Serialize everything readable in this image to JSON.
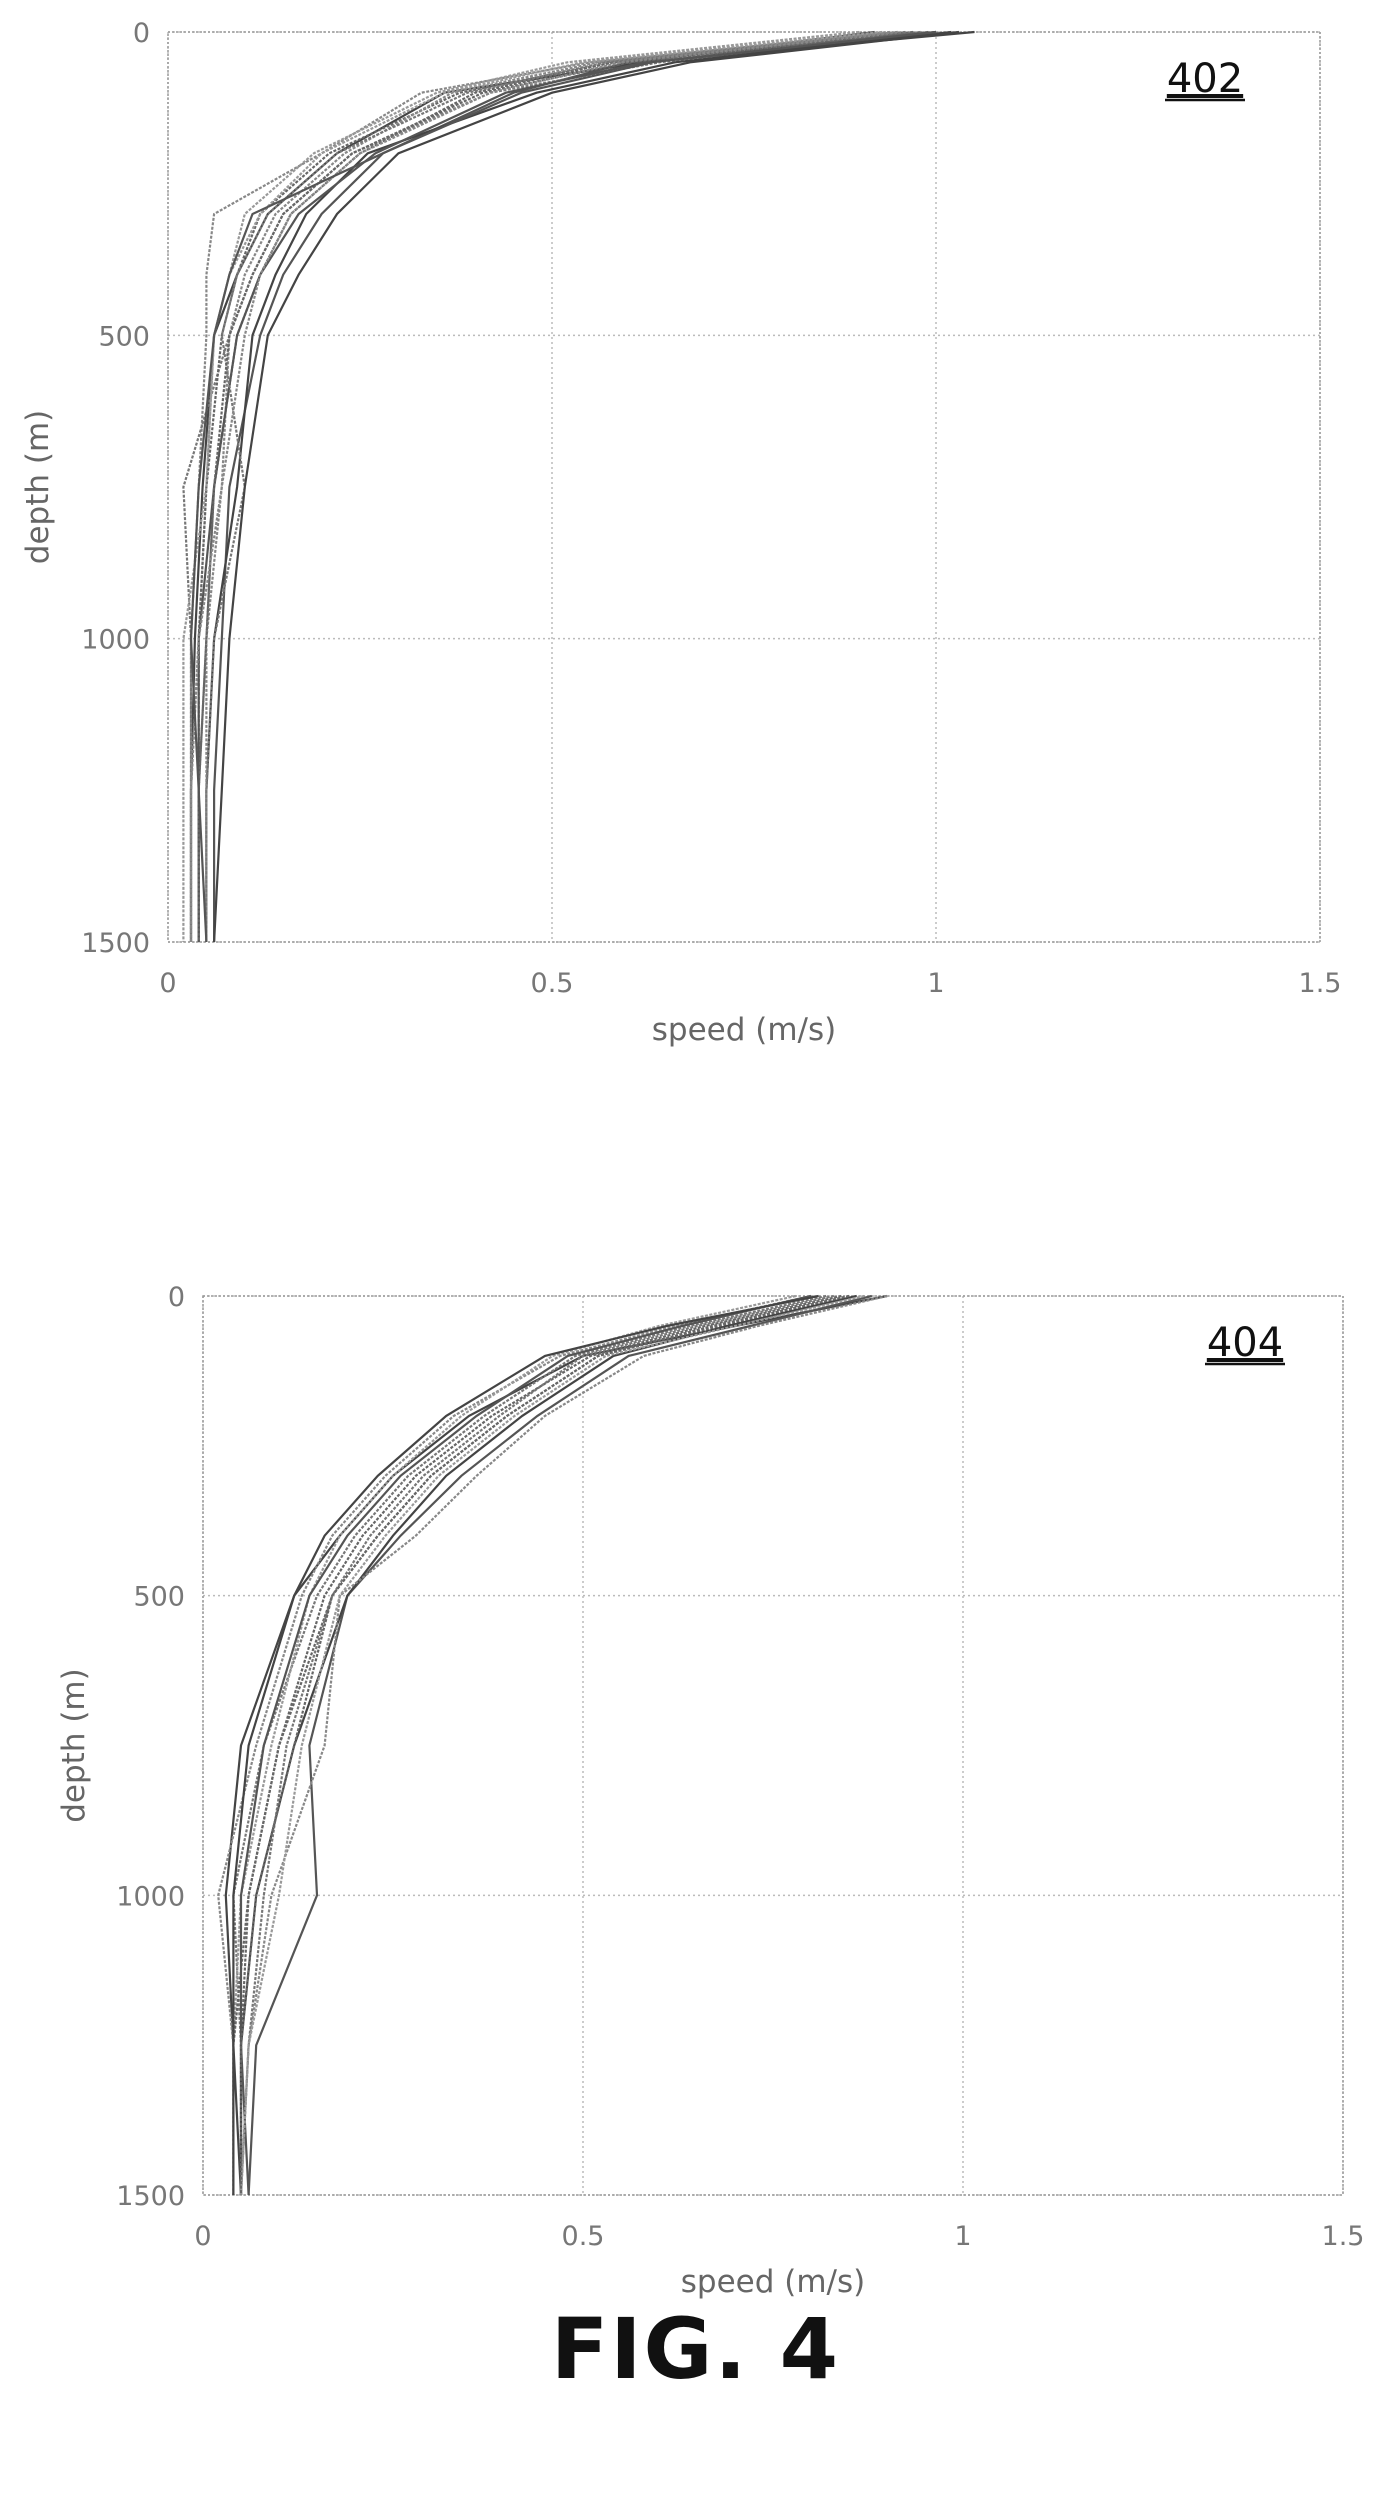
{
  "figure": {
    "caption": "FIG. 4"
  },
  "chart_data": [
    {
      "type": "line",
      "panel_ref": "402",
      "xlabel": "speed (m/s)",
      "ylabel": "depth (m)",
      "xlim": [
        0,
        1.5
      ],
      "ylim": [
        0,
        1500
      ],
      "y_inverted": true,
      "grid": true,
      "xticks": [
        "0",
        "0.5",
        "1",
        "1.5"
      ],
      "yticks": [
        "0",
        "500",
        "1000",
        "1500"
      ],
      "series": [
        {
          "x": [
            1.05,
            0.62,
            0.36,
            0.22,
            0.13,
            0.09,
            0.06,
            0.045,
            0.035,
            0.03,
            0.03
          ],
          "y": [
            0,
            50,
            100,
            200,
            300,
            400,
            500,
            750,
            1000,
            1250,
            1500
          ]
        },
        {
          "x": [
            1.0,
            0.58,
            0.4,
            0.25,
            0.16,
            0.12,
            0.09,
            0.06,
            0.05,
            0.04,
            0.04
          ],
          "y": [
            0,
            50,
            100,
            200,
            300,
            400,
            500,
            750,
            1000,
            1250,
            1500
          ]
        },
        {
          "x": [
            0.95,
            0.55,
            0.33,
            0.2,
            0.06,
            0.05,
            0.05,
            0.04,
            0.03,
            0.03,
            0.03
          ],
          "y": [
            0,
            50,
            100,
            200,
            300,
            400,
            500,
            750,
            1000,
            1250,
            1500
          ]
        },
        {
          "x": [
            0.92,
            0.6,
            0.45,
            0.28,
            0.2,
            0.15,
            0.12,
            0.08,
            0.07,
            0.06,
            0.06
          ],
          "y": [
            0,
            50,
            100,
            200,
            300,
            400,
            500,
            750,
            1000,
            1250,
            1500
          ]
        },
        {
          "x": [
            0.98,
            0.64,
            0.42,
            0.24,
            0.15,
            0.11,
            0.08,
            0.02,
            0.03,
            0.03,
            0.03
          ],
          "y": [
            0,
            50,
            100,
            200,
            300,
            400,
            500,
            750,
            1000,
            1250,
            1500
          ]
        },
        {
          "x": [
            0.9,
            0.52,
            0.35,
            0.19,
            0.1,
            0.08,
            0.06,
            0.05,
            0.04,
            0.03,
            0.03
          ],
          "y": [
            0,
            50,
            100,
            200,
            300,
            400,
            500,
            750,
            1000,
            1250,
            1500
          ]
        },
        {
          "x": [
            1.02,
            0.66,
            0.48,
            0.26,
            0.18,
            0.14,
            0.11,
            0.09,
            0.06,
            0.05,
            0.05
          ],
          "y": [
            0,
            50,
            100,
            200,
            300,
            400,
            500,
            750,
            1000,
            1250,
            1500
          ]
        },
        {
          "x": [
            0.97,
            0.58,
            0.38,
            0.21,
            0.12,
            0.09,
            0.07,
            0.05,
            0.04,
            0.04,
            0.04
          ],
          "y": [
            0,
            50,
            100,
            200,
            300,
            400,
            500,
            750,
            1000,
            1250,
            1500
          ]
        },
        {
          "x": [
            0.94,
            0.56,
            0.37,
            0.23,
            0.14,
            0.1,
            0.08,
            0.07,
            0.05,
            0.05,
            0.05
          ],
          "y": [
            0,
            50,
            100,
            200,
            300,
            400,
            500,
            750,
            1000,
            1250,
            1500
          ]
        },
        {
          "x": [
            1.0,
            0.62,
            0.44,
            0.27,
            0.17,
            0.12,
            0.09,
            0.06,
            0.04,
            0.04,
            0.04
          ],
          "y": [
            0,
            50,
            100,
            200,
            300,
            400,
            500,
            750,
            1000,
            1250,
            1500
          ]
        },
        {
          "x": [
            0.96,
            0.57,
            0.39,
            0.22,
            0.13,
            0.09,
            0.07,
            0.1,
            0.06,
            0.05,
            0.05
          ],
          "y": [
            0,
            50,
            100,
            200,
            300,
            400,
            500,
            750,
            1000,
            1250,
            1500
          ]
        },
        {
          "x": [
            0.93,
            0.54,
            0.36,
            0.2,
            0.12,
            0.08,
            0.06,
            0.05,
            0.02,
            0.02,
            0.02
          ],
          "y": [
            0,
            50,
            100,
            200,
            300,
            400,
            500,
            750,
            1000,
            1250,
            1500
          ]
        },
        {
          "x": [
            1.03,
            0.68,
            0.5,
            0.3,
            0.22,
            0.17,
            0.13,
            0.1,
            0.08,
            0.07,
            0.06
          ],
          "y": [
            0,
            50,
            100,
            200,
            300,
            400,
            500,
            750,
            1000,
            1250,
            1500
          ]
        },
        {
          "x": [
            0.99,
            0.6,
            0.41,
            0.24,
            0.15,
            0.11,
            0.08,
            0.06,
            0.05,
            0.04,
            0.04
          ],
          "y": [
            0,
            50,
            100,
            200,
            300,
            400,
            500,
            750,
            1000,
            1250,
            1500
          ]
        },
        {
          "x": [
            0.95,
            0.59,
            0.42,
            0.25,
            0.16,
            0.12,
            0.1,
            0.07,
            0.04,
            0.03,
            0.03
          ],
          "y": [
            0,
            50,
            100,
            200,
            300,
            400,
            500,
            750,
            1000,
            1250,
            1500
          ]
        },
        {
          "x": [
            1.0,
            0.63,
            0.46,
            0.28,
            0.11,
            0.08,
            0.06,
            0.04,
            0.03,
            0.04,
            0.05
          ],
          "y": [
            0,
            50,
            100,
            200,
            300,
            400,
            500,
            750,
            1000,
            1250,
            1500
          ]
        }
      ]
    },
    {
      "type": "line",
      "panel_ref": "404",
      "xlabel": "speed (m/s)",
      "ylabel": "depth (m)",
      "xlim": [
        0,
        1.5
      ],
      "ylim": [
        0,
        1500
      ],
      "y_inverted": true,
      "grid": true,
      "xticks": [
        "0",
        "0.5",
        "1",
        "1.5"
      ],
      "yticks": [
        "0",
        "500",
        "1000",
        "1500"
      ],
      "series": [
        {
          "x": [
            0.9,
            0.7,
            0.5,
            0.35,
            0.25,
            0.18,
            0.12,
            0.05,
            0.03,
            0.04,
            0.05
          ],
          "y": [
            0,
            50,
            100,
            200,
            300,
            400,
            500,
            750,
            1000,
            1250,
            1500
          ]
        },
        {
          "x": [
            0.85,
            0.68,
            0.52,
            0.4,
            0.3,
            0.23,
            0.17,
            0.1,
            0.06,
            0.05,
            0.05
          ],
          "y": [
            0,
            50,
            100,
            200,
            300,
            400,
            500,
            750,
            1000,
            1250,
            1500
          ]
        },
        {
          "x": [
            0.8,
            0.62,
            0.47,
            0.33,
            0.24,
            0.17,
            0.13,
            0.07,
            0.02,
            0.04,
            0.04
          ],
          "y": [
            0,
            50,
            100,
            200,
            300,
            400,
            500,
            750,
            1000,
            1250,
            1500
          ]
        },
        {
          "x": [
            0.88,
            0.72,
            0.56,
            0.44,
            0.34,
            0.26,
            0.19,
            0.14,
            0.15,
            0.07,
            0.06
          ],
          "y": [
            0,
            50,
            100,
            200,
            300,
            400,
            500,
            750,
            1000,
            1250,
            1500
          ]
        },
        {
          "x": [
            0.82,
            0.64,
            0.49,
            0.37,
            0.27,
            0.2,
            0.15,
            0.08,
            0.04,
            0.05,
            0.05
          ],
          "y": [
            0,
            50,
            100,
            200,
            300,
            400,
            500,
            750,
            1000,
            1250,
            1500
          ]
        },
        {
          "x": [
            0.78,
            0.6,
            0.46,
            0.34,
            0.25,
            0.18,
            0.14,
            0.09,
            0.05,
            0.04,
            0.04
          ],
          "y": [
            0,
            50,
            100,
            200,
            300,
            400,
            500,
            750,
            1000,
            1250,
            1500
          ]
        },
        {
          "x": [
            0.86,
            0.69,
            0.54,
            0.42,
            0.32,
            0.25,
            0.19,
            0.12,
            0.07,
            0.05,
            0.05
          ],
          "y": [
            0,
            50,
            100,
            200,
            300,
            400,
            500,
            750,
            1000,
            1250,
            1500
          ]
        },
        {
          "x": [
            0.84,
            0.66,
            0.51,
            0.38,
            0.28,
            0.21,
            0.16,
            0.1,
            0.06,
            0.04,
            0.04
          ],
          "y": [
            0,
            50,
            100,
            200,
            300,
            400,
            500,
            750,
            1000,
            1250,
            1500
          ]
        },
        {
          "x": [
            0.9,
            0.73,
            0.58,
            0.45,
            0.36,
            0.28,
            0.18,
            0.16,
            0.09,
            0.06,
            0.05
          ],
          "y": [
            0,
            50,
            100,
            200,
            300,
            400,
            500,
            750,
            1000,
            1250,
            1500
          ]
        },
        {
          "x": [
            0.8,
            0.63,
            0.48,
            0.36,
            0.26,
            0.19,
            0.14,
            0.08,
            0.05,
            0.05,
            0.06
          ],
          "y": [
            0,
            50,
            100,
            200,
            300,
            400,
            500,
            750,
            1000,
            1250,
            1500
          ]
        },
        {
          "x": [
            0.83,
            0.65,
            0.5,
            0.39,
            0.29,
            0.22,
            0.17,
            0.11,
            0.08,
            0.06,
            0.05
          ],
          "y": [
            0,
            50,
            100,
            200,
            300,
            400,
            500,
            750,
            1000,
            1250,
            1500
          ]
        },
        {
          "x": [
            0.87,
            0.7,
            0.53,
            0.41,
            0.31,
            0.24,
            0.18,
            0.13,
            0.1,
            0.06,
            0.05
          ],
          "y": [
            0,
            50,
            100,
            200,
            300,
            400,
            500,
            750,
            1000,
            1250,
            1500
          ]
        },
        {
          "x": [
            0.81,
            0.61,
            0.45,
            0.32,
            0.23,
            0.16,
            0.12,
            0.06,
            0.04,
            0.04,
            0.04
          ],
          "y": [
            0,
            50,
            100,
            200,
            300,
            400,
            500,
            750,
            1000,
            1250,
            1500
          ]
        },
        {
          "x": [
            0.85,
            0.67,
            0.52,
            0.4,
            0.3,
            0.23,
            0.17,
            0.12,
            0.07,
            0.05,
            0.05
          ],
          "y": [
            0,
            50,
            100,
            200,
            300,
            400,
            500,
            750,
            1000,
            1250,
            1500
          ]
        }
      ]
    }
  ]
}
